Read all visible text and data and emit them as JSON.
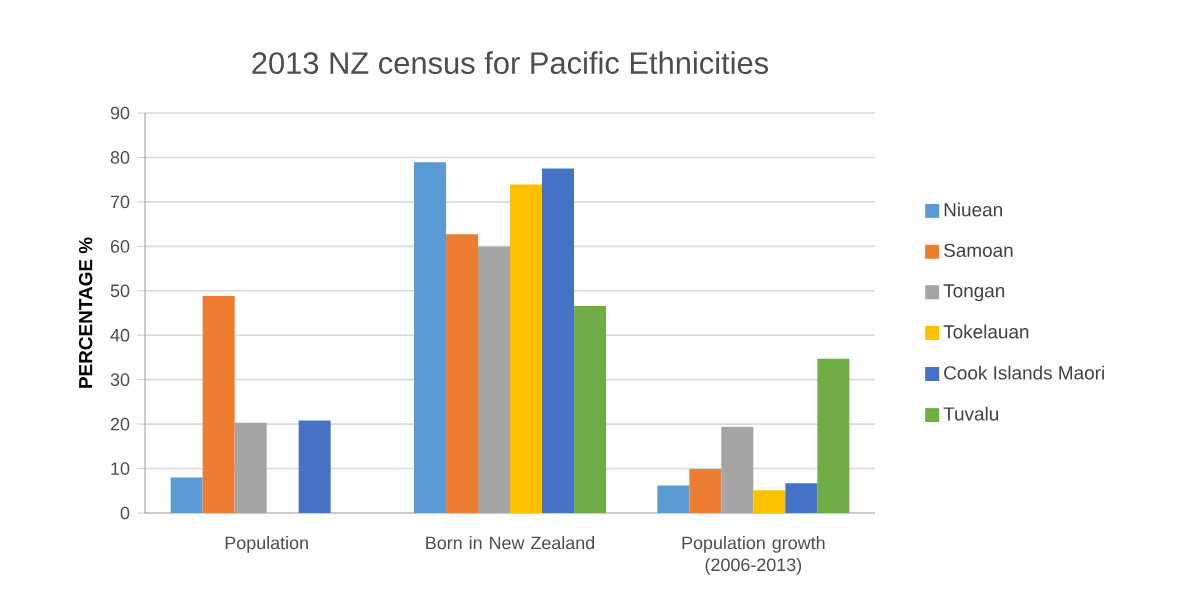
{
  "chart_data": {
    "type": "bar",
    "title": "2013   NZ census for Pacific Ethnicities",
    "ylabel": "PERCENTAGE %",
    "categories": [
      "Population",
      "Born in New Zealand",
      "Population growth (2006-2013)"
    ],
    "series": [
      {
        "name": "Niuean",
        "color": "#5b9bd5",
        "values": [
          8.0,
          78.9,
          6.2
        ]
      },
      {
        "name": "Samoan",
        "color": "#ed7d31",
        "values": [
          48.8,
          62.7,
          9.9
        ]
      },
      {
        "name": "Tongan",
        "color": "#a5a5a5",
        "values": [
          20.3,
          59.9,
          19.4
        ]
      },
      {
        "name": "Tokelauan",
        "color": "#ffc000",
        "values": [
          null,
          73.9,
          5.1
        ]
      },
      {
        "name": "Cook Islands Maori",
        "color": "#4472c4",
        "values": [
          20.8,
          77.5,
          6.7
        ]
      },
      {
        "name": "Tuvalu",
        "color": "#70ad47",
        "values": [
          null,
          46.6,
          34.7
        ]
      }
    ],
    "ylim": [
      0,
      90
    ],
    "yticks": [
      0,
      10,
      20,
      30,
      40,
      50,
      60,
      70,
      80,
      90
    ],
    "grid": "y",
    "legend": "right"
  }
}
